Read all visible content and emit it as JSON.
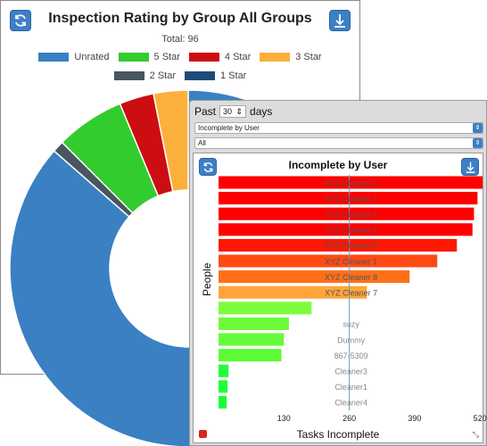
{
  "donut_panel": {
    "refresh_icon": "refresh-icon",
    "download_icon": "download-icon"
  },
  "bar_widget": {
    "past_label": "Past",
    "days_value": "30",
    "days_label": "days",
    "report_select": "Incomplete by User",
    "filter_select": "All",
    "refresh_icon": "refresh-icon",
    "download_icon": "download-icon"
  },
  "chart_data": [
    {
      "type": "pie",
      "title": "Inspection Rating by Group All Groups",
      "subtitle": "Total: 96",
      "legend_position": "top",
      "categories": [
        "Unrated",
        "5 Star",
        "4 Star",
        "3 Star",
        "2 Star",
        "1 Star"
      ],
      "values": [
        83,
        6,
        3,
        3,
        1,
        0
      ],
      "colors": [
        "#3a80c2",
        "#33cc2e",
        "#cc0d12",
        "#fbb03b",
        "#47565f",
        "#1f4b7a"
      ],
      "donut": true
    },
    {
      "type": "bar",
      "orientation": "horizontal",
      "title": "Incomplete by User",
      "xlabel": "Tasks Incomplete",
      "ylabel": "People",
      "xlim": [
        0,
        525
      ],
      "xticks": [
        "130",
        "260",
        "390",
        "520"
      ],
      "reference_line": 260,
      "categories": [
        "XYZ Cleaner 2",
        "XYZ Cleaner 3",
        "XYZ Cleaner 4",
        "XYZ Cleaner 6",
        "XYZ Cleaner 5",
        "XYZ Cleaner 1",
        "XYZ Cleaner 8",
        "XYZ Cleaner 7",
        "",
        "suzy",
        "Dummy",
        "867-5309",
        "Cleaner3",
        "Cleaner1",
        "Cleaner4"
      ],
      "values": [
        525,
        515,
        508,
        505,
        474,
        435,
        380,
        295,
        185,
        140,
        130,
        125,
        20,
        18,
        16
      ],
      "colors": [
        "#ff0000",
        "#ff0000",
        "#ff0000",
        "#ff0000",
        "#ff1700",
        "#ff4a14",
        "#ff6f1a",
        "#ffa53c",
        "#7dfc3d",
        "#6dfb38",
        "#66fb3a",
        "#5cfb36",
        "#22fc3b",
        "#1efd38",
        "#18fd34"
      ]
    }
  ]
}
